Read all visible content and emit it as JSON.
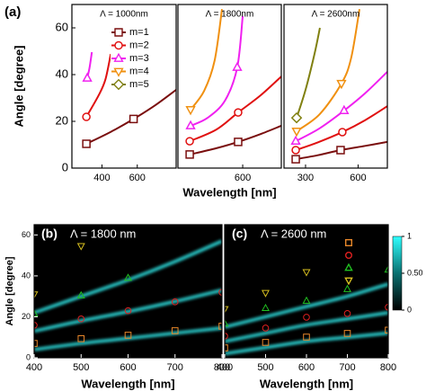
{
  "chart_data": [
    {
      "type": "line",
      "label": "(a)",
      "title": "Λ = 1000nm",
      "y_label": "Angle [degree]",
      "xlim": [
        230,
        820
      ],
      "xticks": [
        400,
        600
      ],
      "ylim": [
        0,
        70
      ],
      "yticks": [
        0,
        20,
        40,
        60
      ],
      "series": [
        {
          "color": "#7a0e0e",
          "marker": "square",
          "x": [
            312,
            450,
            579,
            700,
            820
          ],
          "values": [
            10.4,
            15.5,
            21,
            26.8,
            33.5
          ],
          "marker_x": [
            312,
            579
          ],
          "marker_values": [
            10.4,
            21
          ]
        },
        {
          "color": "#e01010",
          "marker": "circle",
          "x": [
            312,
            384,
            420,
            450
          ],
          "values": [
            21.9,
            31.5,
            38,
            48.8
          ],
          "marker_x": [
            312
          ],
          "marker_values": [
            21.9
          ]
        },
        {
          "color": "#f020f0",
          "marker": "triangle-up",
          "x": [
            317,
            330,
            343
          ],
          "values": [
            38.5,
            43,
            49.6
          ],
          "marker_x": [
            317
          ],
          "marker_values": [
            38.5
          ]
        }
      ]
    },
    {
      "type": "line",
      "title": "Λ = 1800nm",
      "x_label": "Wavelength [nm]",
      "xlim": [
        231,
        820
      ],
      "xticks": [
        600
      ],
      "ylim": [
        0,
        70
      ],
      "series": [
        {
          "color": "#7a0e0e",
          "marker": "square",
          "x": [
            298,
            450,
            574,
            700,
            820
          ],
          "values": [
            5.8,
            8.5,
            11.2,
            14.5,
            18.1
          ],
          "marker_x": [
            298,
            574
          ],
          "marker_values": [
            5.8,
            11.2
          ]
        },
        {
          "color": "#e01010",
          "marker": "circle",
          "x": [
            298,
            450,
            574,
            700,
            820
          ],
          "values": [
            11.5,
            16.5,
            23.8,
            31,
            39.2
          ],
          "marker_x": [
            298,
            574
          ],
          "marker_values": [
            11.5,
            23.8
          ]
        },
        {
          "color": "#f020f0",
          "marker": "triangle-up",
          "x": [
            303,
            400,
            500,
            569,
            600
          ],
          "values": [
            18.1,
            21.5,
            29,
            43.1,
            65
          ],
          "marker_x": [
            303,
            569
          ],
          "marker_values": [
            18.1,
            43.1
          ]
        },
        {
          "color": "#f09010",
          "marker": "triangle-down",
          "x": [
            303,
            380,
            440,
            482
          ],
          "values": [
            25,
            33,
            46,
            68
          ],
          "marker_x": [
            303
          ],
          "marker_values": [
            25
          ]
        }
      ]
    },
    {
      "type": "line",
      "title": "Λ = 2600nm",
      "legend": true,
      "xlim": [
        177,
        767
      ],
      "xticks": [
        300,
        600
      ],
      "ylim": [
        0,
        70
      ],
      "series": [
        {
          "name": "m=1",
          "color": "#7a0e0e",
          "marker": "square",
          "x": [
            244,
            370,
            500,
            640,
            767
          ],
          "values": [
            3.8,
            5.5,
            7.7,
            9.5,
            11.2
          ],
          "marker_x": [
            244,
            500
          ],
          "marker_values": [
            3.8,
            7.7
          ]
        },
        {
          "name": "m=2",
          "color": "#e01010",
          "marker": "circle",
          "x": [
            244,
            370,
            510,
            640,
            767
          ],
          "values": [
            7.7,
            11,
            15.4,
            20.5,
            26.5
          ],
          "marker_x": [
            244,
            510
          ],
          "marker_values": [
            7.7,
            15.4
          ]
        },
        {
          "name": "m=3",
          "color": "#f020f0",
          "marker": "triangle-up",
          "x": [
            244,
            380,
            520,
            640,
            767
          ],
          "values": [
            11.5,
            17,
            24.6,
            32,
            41.2
          ],
          "marker_x": [
            244,
            520
          ],
          "marker_values": [
            11.5,
            24.6
          ]
        },
        {
          "name": "m=4",
          "color": "#f09010",
          "marker": "triangle-down",
          "x": [
            249,
            380,
            505,
            560,
            608
          ],
          "values": [
            15.8,
            23,
            36.2,
            47,
            68
          ],
          "marker_x": [
            249,
            505
          ],
          "marker_values": [
            15.8,
            36.2
          ]
        },
        {
          "name": "m=5",
          "color": "#808010",
          "marker": "diamond",
          "x": [
            249,
            300,
            351,
            382
          ],
          "values": [
            21.5,
            33.5,
            48.8,
            60
          ],
          "marker_x": [
            249
          ],
          "marker_values": [
            21.5
          ]
        }
      ]
    },
    {
      "type": "heatmap",
      "label": "(b)",
      "title": "Λ = 1800 nm",
      "y_label": "Angle [degree]",
      "x_label": "Wavelength [nm]",
      "xlim": [
        400,
        800
      ],
      "xticks": [
        400,
        500,
        600,
        700,
        800
      ],
      "ylim": [
        0,
        65
      ],
      "yticks": [
        0,
        20,
        40,
        60
      ],
      "bands": [
        {
          "x": [
            400,
            500,
            600,
            700,
            800
          ],
          "values": [
            4,
            7,
            9.5,
            12,
            14.5
          ]
        },
        {
          "x": [
            400,
            500,
            600,
            700,
            800
          ],
          "values": [
            13,
            18,
            22.5,
            27.5,
            33
          ]
        },
        {
          "x": [
            400,
            500,
            600,
            700,
            800
          ],
          "values": [
            22,
            30,
            38,
            47,
            57
          ]
        }
      ],
      "series": [
        {
          "color": "#e8872a",
          "marker": "square",
          "marker_x": [
            400,
            500,
            600,
            700,
            800
          ],
          "marker_values": [
            7,
            9.3,
            11,
            13.2,
            15.4
          ]
        },
        {
          "color": "#e02020",
          "marker": "circle",
          "marker_x": [
            400,
            500,
            600,
            700,
            800
          ],
          "marker_values": [
            15.9,
            19,
            23,
            27.3,
            32
          ]
        },
        {
          "color": "#20c020",
          "marker": "triangle-up",
          "marker_x": [
            400,
            500,
            600
          ],
          "marker_values": [
            21.6,
            30.4,
            39
          ]
        },
        {
          "color": "#d8c020",
          "marker": "triangle-down",
          "marker_x": [
            400,
            500
          ],
          "marker_values": [
            31,
            54.6
          ]
        }
      ]
    },
    {
      "type": "heatmap",
      "label": "(c)",
      "title": "Λ = 2600 nm",
      "x_label": "Wavelength [nm]",
      "legend": true,
      "xlim": [
        400,
        800
      ],
      "xticks": [
        400,
        500,
        600,
        700,
        800
      ],
      "ylim": [
        0,
        65
      ],
      "colorbar": {
        "lim": [
          0,
          1
        ],
        "ticks": [
          0,
          {
            "value": 0.5,
            "label": "0.50"
          },
          1
        ]
      },
      "bands": [
        {
          "x": [
            400,
            500,
            600,
            700,
            800
          ],
          "values": [
            2,
            5,
            8,
            10,
            12
          ]
        },
        {
          "x": [
            400,
            500,
            600,
            700,
            800
          ],
          "values": [
            8,
            12,
            16,
            19,
            22
          ]
        },
        {
          "x": [
            400,
            500,
            600,
            700,
            800
          ],
          "values": [
            15,
            20,
            25,
            30,
            36
          ]
        }
      ],
      "series": [
        {
          "name": "m=1",
          "color": "#e8872a",
          "marker": "square",
          "marker_x": [
            400,
            500,
            600,
            700,
            800
          ],
          "marker_values": [
            4.8,
            7.5,
            10.1,
            11.9,
            13.5
          ]
        },
        {
          "name": "m=2",
          "color": "#e02020",
          "marker": "circle",
          "marker_x": [
            400,
            500,
            600,
            700,
            800
          ],
          "marker_values": [
            10.6,
            14.5,
            19.8,
            21.6,
            24.7
          ]
        },
        {
          "name": "m=3",
          "color": "#20c020",
          "marker": "triangle-up",
          "marker_x": [
            400,
            500,
            600,
            700,
            800
          ],
          "marker_values": [
            16.7,
            24.2,
            27.8,
            33.5,
            43
          ]
        },
        {
          "name": "m=4",
          "color": "#d8c020",
          "marker": "triangle-down",
          "marker_x": [
            400,
            500,
            600
          ],
          "marker_values": [
            23.8,
            31.7,
            41.9
          ]
        }
      ]
    }
  ]
}
